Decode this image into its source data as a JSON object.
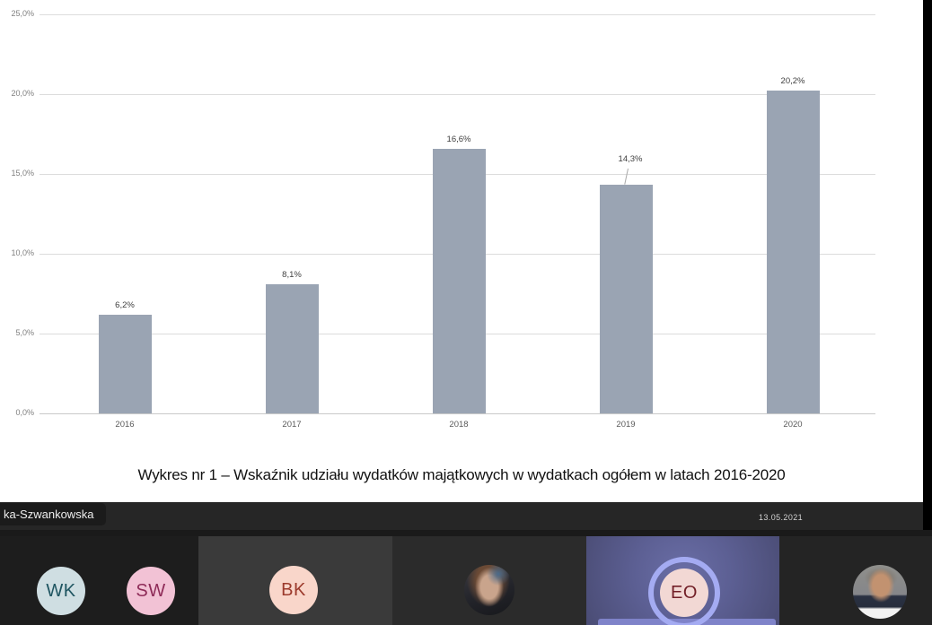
{
  "chart_data": {
    "type": "bar",
    "categories": [
      "2016",
      "2017",
      "2018",
      "2019",
      "2020"
    ],
    "values": [
      6.2,
      8.1,
      16.6,
      14.3,
      20.2
    ],
    "value_labels": [
      "6,2%",
      "8,1%",
      "16,6%",
      "14,3%",
      "20,2%"
    ],
    "y_ticks": [
      "25,0%",
      "20,0%",
      "15,0%",
      "10,0%",
      "5,0%",
      "0,0%"
    ],
    "ylim": [
      0,
      25
    ],
    "grid": true,
    "legend": "none",
    "bar_color": "#9aa4b3",
    "callout_category": "2019",
    "title": "",
    "xlabel": "",
    "ylabel": ""
  },
  "caption": "Wykres nr 1 – Wskaźnik udziału wydatków majątkowych w wydatkach ogółem w latach 2016-2020",
  "meeting": {
    "name_tag": "ka-Szwankowska",
    "date": "13.05.2021",
    "accent_speaking_ring": "#a4abf2",
    "participants": [
      {
        "id": "wk",
        "kind": "initials",
        "initials": "WK",
        "bg": "#cfdee2",
        "fg": "#1f5561"
      },
      {
        "id": "sw",
        "kind": "initials",
        "initials": "SW",
        "bg": "#f2c2d5",
        "fg": "#8e2b58"
      },
      {
        "id": "bk",
        "kind": "initials",
        "initials": "BK",
        "bg": "#f9d6ca",
        "fg": "#9c3a2c"
      },
      {
        "id": "photo-woman",
        "kind": "photo"
      },
      {
        "id": "eo",
        "kind": "initials",
        "initials": "EO",
        "bg": "#f2d8d4",
        "fg": "#721f27",
        "speaking": true
      },
      {
        "id": "photo-man",
        "kind": "photo"
      }
    ]
  }
}
